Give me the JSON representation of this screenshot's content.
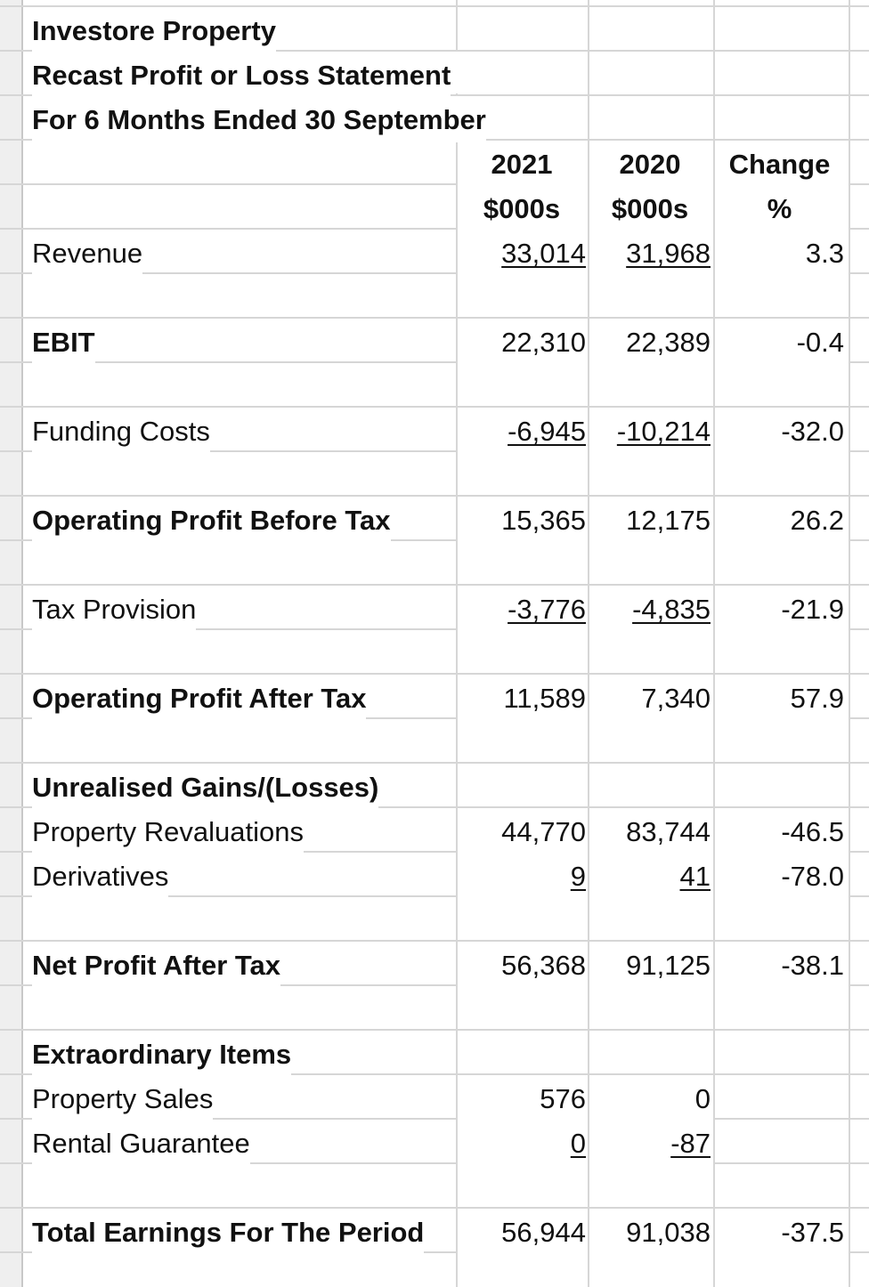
{
  "title": {
    "line1": "Investore Property",
    "line2": "Recast Profit or Loss Statement",
    "line3": "For 6 Months Ended 30 September"
  },
  "columns": {
    "y2021": "2021",
    "y2020": "2020",
    "change": "Change",
    "unit2021": "$000s",
    "unit2020": "$000s",
    "unitChange": "%"
  },
  "rows": {
    "revenue": {
      "label": "Revenue",
      "v2021": "33,014",
      "v2020": "31,968",
      "change": "3.3"
    },
    "ebit": {
      "label": "EBIT",
      "v2021": "22,310",
      "v2020": "22,389",
      "change": "-0.4"
    },
    "funding": {
      "label": "Funding Costs",
      "v2021": "-6,945",
      "v2020": "-10,214",
      "change": "-32.0"
    },
    "opbt": {
      "label": "Operating Profit Before Tax",
      "v2021": "15,365",
      "v2020": "12,175",
      "change": "26.2"
    },
    "tax": {
      "label": "Tax Provision",
      "v2021": "-3,776",
      "v2020": "-4,835",
      "change": "-21.9"
    },
    "opat": {
      "label": "Operating Profit After Tax",
      "v2021": "11,589",
      "v2020": "7,340",
      "change": "57.9"
    },
    "unrealised": {
      "label": "Unrealised Gains/(Losses)"
    },
    "revals": {
      "label": "Property Revaluations",
      "v2021": "44,770",
      "v2020": "83,744",
      "change": "-46.5"
    },
    "derivs": {
      "label": "Derivatives",
      "v2021": "9",
      "v2020": "41",
      "change": "-78.0"
    },
    "npat": {
      "label": "Net Profit After Tax",
      "v2021": "56,368",
      "v2020": "91,125",
      "change": "-38.1"
    },
    "extra": {
      "label": "Extraordinary Items"
    },
    "sales": {
      "label": "Property Sales",
      "v2021": "576",
      "v2020": "0",
      "change": ""
    },
    "guarantee": {
      "label": "Rental Guarantee",
      "v2021": "0",
      "v2020": "-87",
      "change": ""
    },
    "total": {
      "label": "Total Earnings For The Period",
      "v2021": "56,944",
      "v2020": "91,038",
      "change": "-37.5"
    }
  },
  "colors": {
    "gridline": "#d6d6d6",
    "header_gutter": "#efefef",
    "text": "#111111"
  }
}
